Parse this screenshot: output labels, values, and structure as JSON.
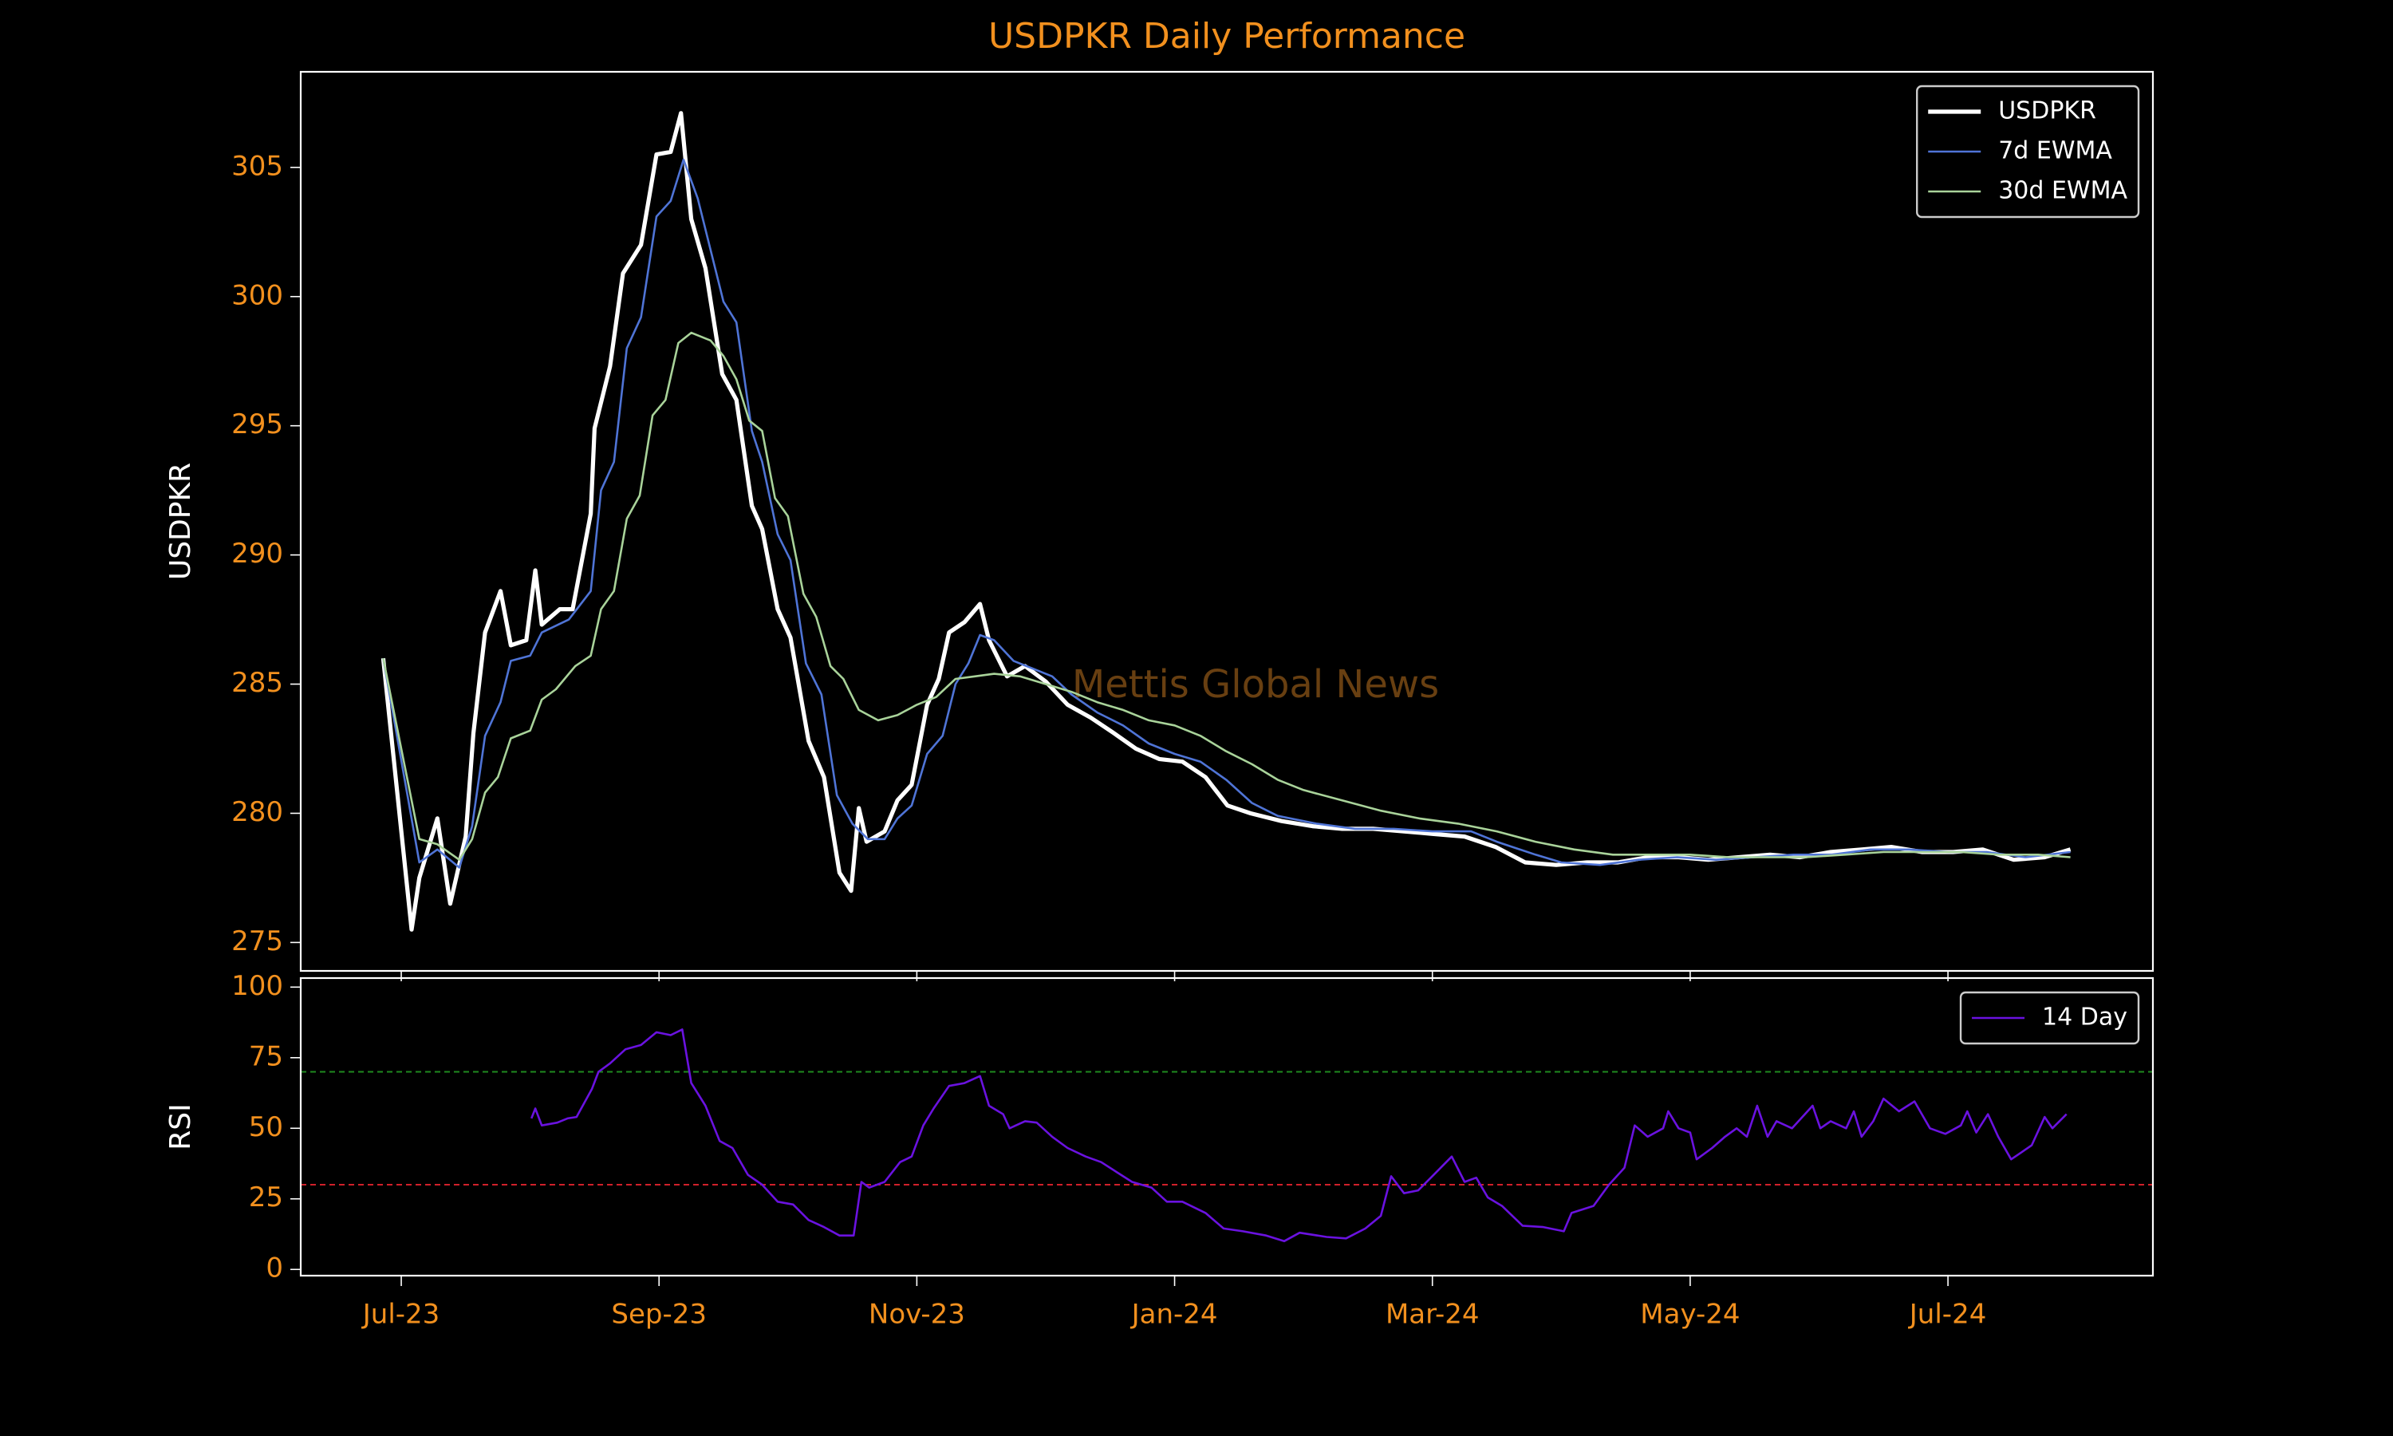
{
  "chart_data": [
    {
      "type": "line",
      "title": "USDPKR Daily Performance",
      "ylabel": "USDPKR",
      "annotation": "Mettis Global News",
      "xlim": [
        -0.78,
        13.59
      ],
      "ylim": [
        273.9,
        308.7
      ],
      "yticks": [
        275,
        280,
        285,
        290,
        295,
        300,
        305
      ],
      "legend": "upper right",
      "series": [
        {
          "name": "USDPKR",
          "color": "#ffffff",
          "width": 2,
          "x": [
            -0.14,
            0.08,
            0.14,
            0.28,
            0.38,
            0.5,
            0.56,
            0.65,
            0.77,
            0.85,
            0.97,
            1.04,
            1.09,
            1.23,
            1.33,
            1.47,
            1.5,
            1.62,
            1.72,
            1.86,
            1.98,
            2.09,
            2.17,
            2.25,
            2.36,
            2.49,
            2.6,
            2.72,
            2.8,
            2.92,
            3.02,
            3.16,
            3.28,
            3.4,
            3.49,
            3.55,
            3.61,
            3.75,
            3.85,
            3.96,
            4.08,
            4.17,
            4.25,
            4.37,
            4.49,
            4.56,
            4.7,
            4.84,
            5.0,
            5.17,
            5.35,
            5.53,
            5.7,
            5.88,
            6.06,
            6.24,
            6.41,
            6.59,
            6.83,
            7.07,
            7.3,
            7.54,
            7.78,
            8.01,
            8.25,
            8.49,
            8.72,
            8.96,
            9.2,
            9.44,
            9.67,
            9.91,
            10.14,
            10.38,
            10.62,
            10.85,
            11.09,
            11.33,
            11.56,
            11.8,
            12.04,
            12.27,
            12.51,
            12.75,
            12.95
          ],
          "values": [
            286.0,
            275.5,
            277.5,
            279.8,
            276.5,
            279.1,
            283.1,
            287.0,
            288.6,
            286.5,
            286.7,
            289.4,
            287.3,
            287.9,
            287.9,
            291.6,
            294.9,
            297.3,
            300.9,
            302.0,
            305.5,
            305.6,
            307.1,
            303.0,
            301.1,
            297.0,
            296.0,
            291.9,
            291.0,
            287.9,
            286.8,
            282.8,
            281.4,
            277.7,
            277.0,
            280.2,
            278.9,
            279.3,
            280.5,
            281.1,
            284.2,
            285.2,
            287.0,
            287.4,
            288.1,
            286.7,
            285.3,
            285.7,
            285.1,
            284.2,
            283.7,
            283.1,
            282.5,
            282.1,
            282.0,
            281.4,
            280.3,
            280.0,
            279.7,
            279.5,
            279.4,
            279.4,
            279.3,
            279.2,
            279.1,
            278.7,
            278.1,
            278.0,
            278.1,
            278.1,
            278.3,
            278.3,
            278.2,
            278.3,
            278.4,
            278.3,
            278.5,
            278.6,
            278.7,
            278.5,
            278.5,
            278.6,
            278.2,
            278.3,
            278.6
          ]
        },
        {
          "name": "7d EWMA",
          "color": "#4f74d6",
          "width": 1,
          "x": [
            -0.14,
            0.14,
            0.28,
            0.45,
            0.55,
            0.65,
            0.77,
            0.85,
            1.0,
            1.09,
            1.3,
            1.47,
            1.55,
            1.65,
            1.75,
            1.86,
            1.98,
            2.09,
            2.19,
            2.3,
            2.5,
            2.6,
            2.72,
            2.8,
            2.92,
            3.02,
            3.14,
            3.26,
            3.38,
            3.5,
            3.62,
            3.75,
            3.85,
            3.96,
            4.08,
            4.2,
            4.3,
            4.4,
            4.49,
            4.6,
            4.75,
            4.9,
            5.05,
            5.2,
            5.4,
            5.6,
            5.8,
            6.0,
            6.2,
            6.4,
            6.6,
            6.8,
            7.1,
            7.4,
            7.7,
            8.0,
            8.3,
            8.5,
            8.8,
            9.0,
            9.3,
            9.6,
            9.9,
            10.2,
            10.5,
            10.8,
            11.1,
            11.4,
            11.7,
            12.0,
            12.3,
            12.6,
            12.95
          ],
          "values": [
            286.0,
            278.1,
            278.6,
            277.9,
            279.5,
            283.0,
            284.3,
            285.9,
            286.1,
            287.0,
            287.5,
            288.6,
            292.5,
            293.6,
            298.0,
            299.2,
            303.1,
            303.7,
            305.3,
            303.8,
            299.8,
            299.0,
            294.8,
            293.6,
            290.8,
            289.8,
            285.8,
            284.6,
            280.7,
            279.6,
            279.0,
            279.0,
            279.8,
            280.3,
            282.3,
            283.0,
            285.0,
            285.8,
            286.9,
            286.7,
            285.9,
            285.6,
            285.3,
            284.6,
            283.9,
            283.4,
            282.7,
            282.3,
            282.0,
            281.3,
            280.4,
            279.9,
            279.6,
            279.4,
            279.4,
            279.3,
            279.3,
            278.9,
            278.4,
            278.1,
            278.0,
            278.2,
            278.3,
            278.2,
            278.3,
            278.4,
            278.4,
            278.6,
            278.6,
            278.5,
            278.5,
            278.3,
            278.5
          ]
        },
        {
          "name": "30d EWMA",
          "color": "#a9d39a",
          "width": 1,
          "x": [
            -0.14,
            0.14,
            0.28,
            0.45,
            0.55,
            0.65,
            0.75,
            0.85,
            1.0,
            1.09,
            1.2,
            1.35,
            1.47,
            1.55,
            1.65,
            1.75,
            1.85,
            1.95,
            2.05,
            2.15,
            2.25,
            2.4,
            2.5,
            2.6,
            2.7,
            2.8,
            2.9,
            3.0,
            3.12,
            3.22,
            3.33,
            3.43,
            3.55,
            3.7,
            3.85,
            4.0,
            4.15,
            4.3,
            4.45,
            4.6,
            4.8,
            5.0,
            5.2,
            5.4,
            5.6,
            5.8,
            6.0,
            6.2,
            6.4,
            6.6,
            6.8,
            7.0,
            7.3,
            7.6,
            7.9,
            8.2,
            8.5,
            8.8,
            9.1,
            9.4,
            9.7,
            10.0,
            10.3,
            10.6,
            10.9,
            11.2,
            11.5,
            11.8,
            12.1,
            12.4,
            12.7,
            12.95
          ],
          "values": [
            286.0,
            279.0,
            278.8,
            278.2,
            279.0,
            280.8,
            281.4,
            282.9,
            283.2,
            284.4,
            284.8,
            285.7,
            286.1,
            287.9,
            288.6,
            291.4,
            292.3,
            295.4,
            296.0,
            298.2,
            298.6,
            298.3,
            297.7,
            296.8,
            295.2,
            294.8,
            292.2,
            291.5,
            288.5,
            287.6,
            285.7,
            285.2,
            284.0,
            283.6,
            283.8,
            284.2,
            284.5,
            285.2,
            285.3,
            285.4,
            285.3,
            285.0,
            284.7,
            284.3,
            284.0,
            283.6,
            283.4,
            283.0,
            282.4,
            281.9,
            281.3,
            280.9,
            280.5,
            280.1,
            279.8,
            279.6,
            279.3,
            278.9,
            278.6,
            278.4,
            278.4,
            278.4,
            278.3,
            278.3,
            278.3,
            278.4,
            278.5,
            278.5,
            278.5,
            278.4,
            278.4,
            278.3
          ]
        }
      ]
    },
    {
      "type": "line",
      "ylabel": "RSI",
      "xlim": [
        -0.78,
        13.59
      ],
      "ylim": [
        -2.2,
        103.2
      ],
      "yticks": [
        0,
        25,
        50,
        75,
        100
      ],
      "legend": "upper right",
      "xticks": [
        {
          "value": 0,
          "label": "Jul-23"
        },
        {
          "value": 2,
          "label": "Sep-23"
        },
        {
          "value": 4,
          "label": "Nov-23"
        },
        {
          "value": 6,
          "label": "Jan-24"
        },
        {
          "value": 8,
          "label": "Mar-24"
        },
        {
          "value": 10,
          "label": "May-24"
        },
        {
          "value": 12,
          "label": "Jul-24"
        }
      ],
      "hlines": [
        {
          "value": 70,
          "color": "#1f8a1f"
        },
        {
          "value": 30,
          "color": "#d0202a"
        }
      ],
      "series": [
        {
          "name": "14 Day",
          "color": "#6a12e0",
          "width": 1,
          "x": [
            1.01,
            1.04,
            1.09,
            1.21,
            1.29,
            1.36,
            1.48,
            1.53,
            1.62,
            1.74,
            1.86,
            1.98,
            2.09,
            2.18,
            2.25,
            2.36,
            2.47,
            2.57,
            2.69,
            2.8,
            2.92,
            3.04,
            3.16,
            3.28,
            3.4,
            3.51,
            3.57,
            3.63,
            3.75,
            3.87,
            3.96,
            4.05,
            4.13,
            4.25,
            4.37,
            4.49,
            4.56,
            4.67,
            4.72,
            4.84,
            4.93,
            5.05,
            5.17,
            5.31,
            5.43,
            5.55,
            5.67,
            5.82,
            5.94,
            6.06,
            6.24,
            6.38,
            6.53,
            6.71,
            6.85,
            6.97,
            7.18,
            7.33,
            7.48,
            7.6,
            7.68,
            7.78,
            7.89,
            8.01,
            8.15,
            8.25,
            8.34,
            8.43,
            8.54,
            8.7,
            8.86,
            9.02,
            9.08,
            9.25,
            9.37,
            9.49,
            9.57,
            9.67,
            9.79,
            9.83,
            9.91,
            10.0,
            10.05,
            10.17,
            10.27,
            10.36,
            10.44,
            10.52,
            10.6,
            10.67,
            10.79,
            10.95,
            11.01,
            11.09,
            11.21,
            11.27,
            11.33,
            11.42,
            11.5,
            11.62,
            11.74,
            11.86,
            11.98,
            12.1,
            12.15,
            12.22,
            12.31,
            12.39,
            12.49,
            12.57,
            12.65,
            12.75,
            12.81,
            12.92
          ],
          "values": [
            53.5,
            57,
            51,
            52,
            53.5,
            54,
            64,
            70,
            73,
            78,
            79.5,
            84,
            83,
            85,
            66,
            58,
            45.5,
            43,
            33.5,
            30,
            24,
            23,
            17.5,
            15,
            12,
            12,
            31,
            29,
            31,
            38,
            40,
            51,
            57,
            65,
            66,
            68.5,
            58,
            55,
            50,
            52.5,
            52,
            47,
            43,
            40,
            38,
            34.5,
            31,
            29,
            24,
            24,
            20,
            14.5,
            13.5,
            12,
            10,
            13,
            11.5,
            11,
            14.5,
            19,
            33,
            27,
            28,
            33.5,
            40,
            31,
            32.5,
            25.5,
            22.5,
            15.5,
            15,
            13.5,
            20,
            22.5,
            30,
            36,
            51,
            47,
            50,
            56,
            50,
            48.5,
            39,
            43,
            47,
            50,
            47,
            58,
            47,
            52.5,
            50,
            58,
            50,
            52.5,
            50,
            56,
            47,
            52.5,
            60.5,
            56,
            59.5,
            50,
            48,
            51,
            56,
            48.5,
            55,
            47,
            39,
            41.5,
            44,
            54,
            50,
            55
          ]
        }
      ]
    }
  ]
}
